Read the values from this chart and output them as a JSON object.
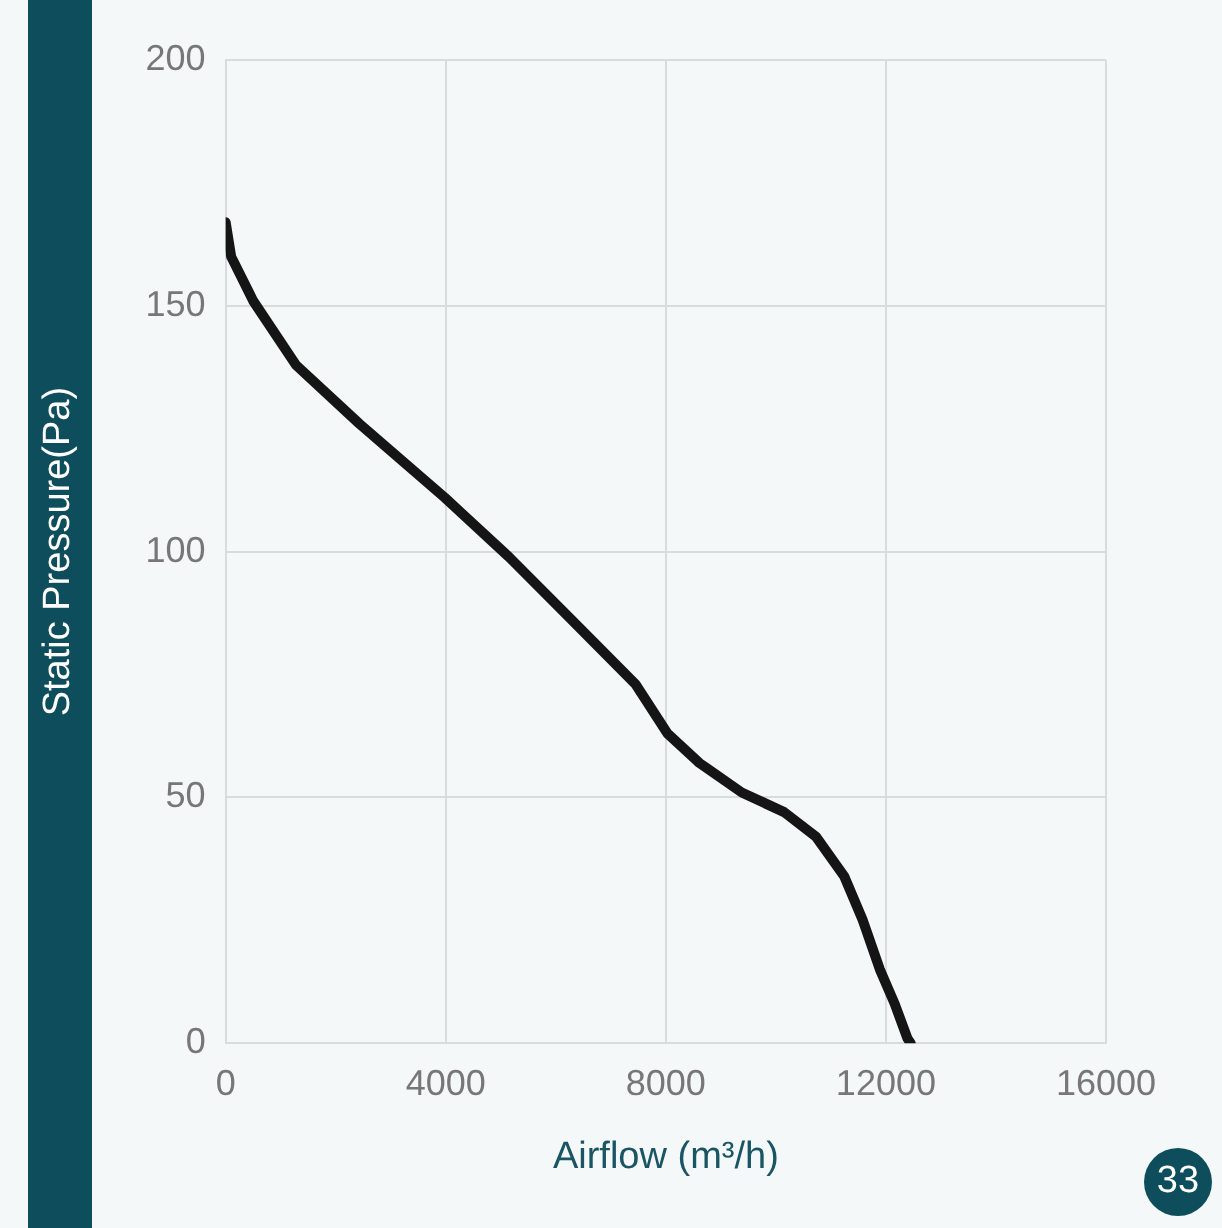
{
  "chart_data": {
    "type": "line",
    "xlabel": "Airflow (m³/h)",
    "ylabel": "Static Pressure(Pa)",
    "series": [
      {
        "color": "#151515",
        "x": [
          0,
          100,
          500,
          1275,
          2430,
          3980,
          5140,
          6300,
          7450,
          8030,
          8610,
          9380,
          10150,
          10730,
          11240,
          11580,
          11890,
          12160,
          12390,
          12450
        ],
        "values": [
          167,
          160,
          151,
          138,
          126,
          111,
          99,
          86,
          73,
          63,
          57,
          51,
          47,
          42,
          34,
          25,
          15,
          8,
          1,
          0
        ]
      }
    ],
    "xlim": [
      0,
      16000
    ],
    "xticks": [
      0,
      4000,
      8000,
      12000,
      16000
    ],
    "ylim": [
      0,
      200
    ],
    "yticks": [
      0,
      50,
      100,
      150,
      200
    ],
    "grid": true,
    "legend": false,
    "marker": "none",
    "line_style": "solid",
    "annotations": [
      "33"
    ]
  }
}
